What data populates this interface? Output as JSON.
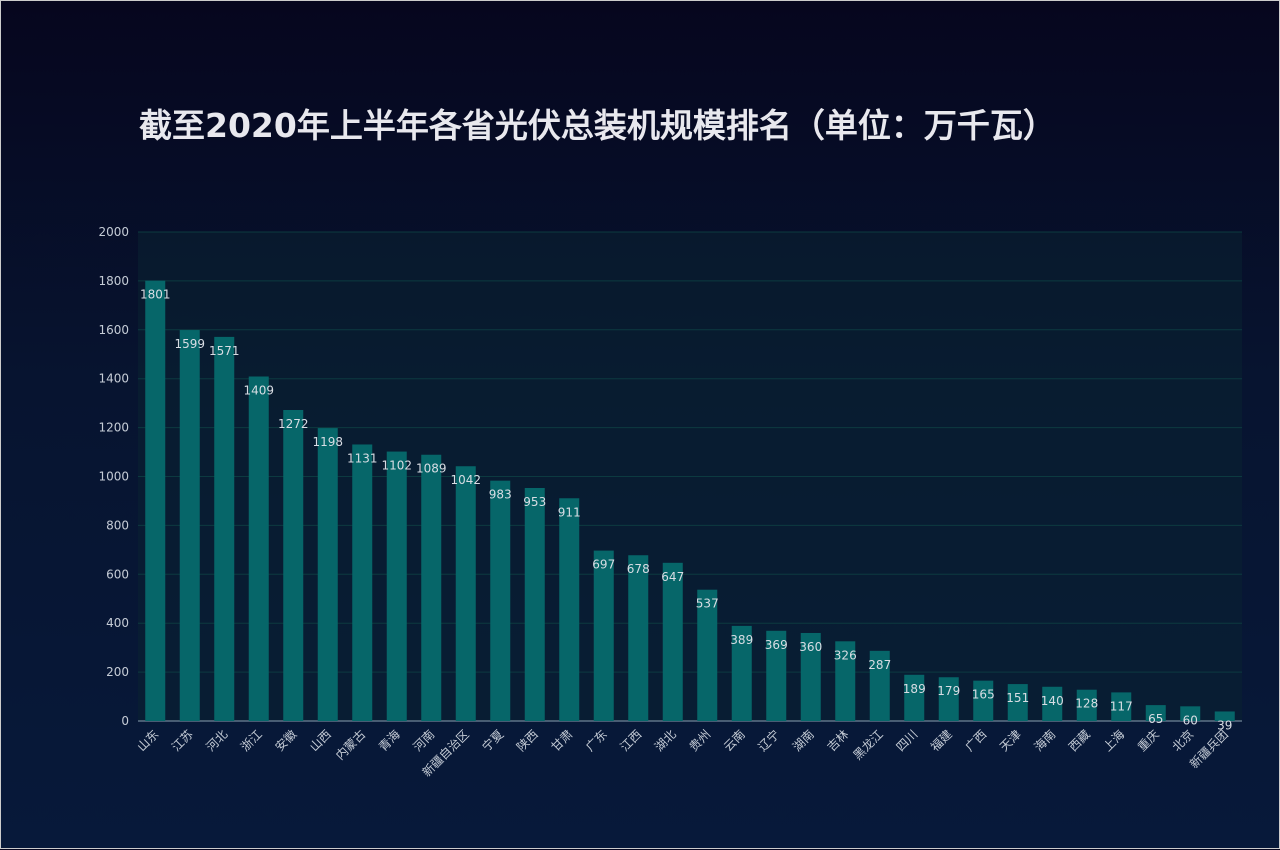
{
  "chart_data": {
    "type": "bar",
    "title": "截至2020年上半年各省光伏总装机规模排名（单位：万千瓦）",
    "xlabel": "",
    "ylabel": "",
    "ylim": [
      0,
      2000
    ],
    "yticks": [
      0,
      200,
      400,
      600,
      800,
      1000,
      1200,
      1400,
      1600,
      1800,
      2000
    ],
    "grid": true,
    "categories": [
      "山东",
      "江苏",
      "河北",
      "浙江",
      "安徽",
      "山西",
      "内蒙古",
      "青海",
      "河南",
      "新疆自治区",
      "宁夏",
      "陕西",
      "甘肃",
      "广东",
      "江西",
      "湖北",
      "贵州",
      "云南",
      "辽宁",
      "湖南",
      "吉林",
      "黑龙江",
      "四川",
      "福建",
      "广西",
      "天津",
      "海南",
      "西藏",
      "上海",
      "重庆",
      "北京",
      "新疆兵团"
    ],
    "values": [
      1801,
      1599,
      1571,
      1409,
      1272,
      1198,
      1131,
      1102,
      1089,
      1042,
      983,
      953,
      911,
      697,
      678,
      647,
      537,
      389,
      369,
      360,
      326,
      287,
      189,
      179,
      165,
      151,
      140,
      128,
      117,
      65,
      60,
      39
    ],
    "colors": {
      "bar": "#066669",
      "grid": "#0c3a40",
      "axis": "#8aa0b0",
      "label": "#d8dde4"
    }
  }
}
